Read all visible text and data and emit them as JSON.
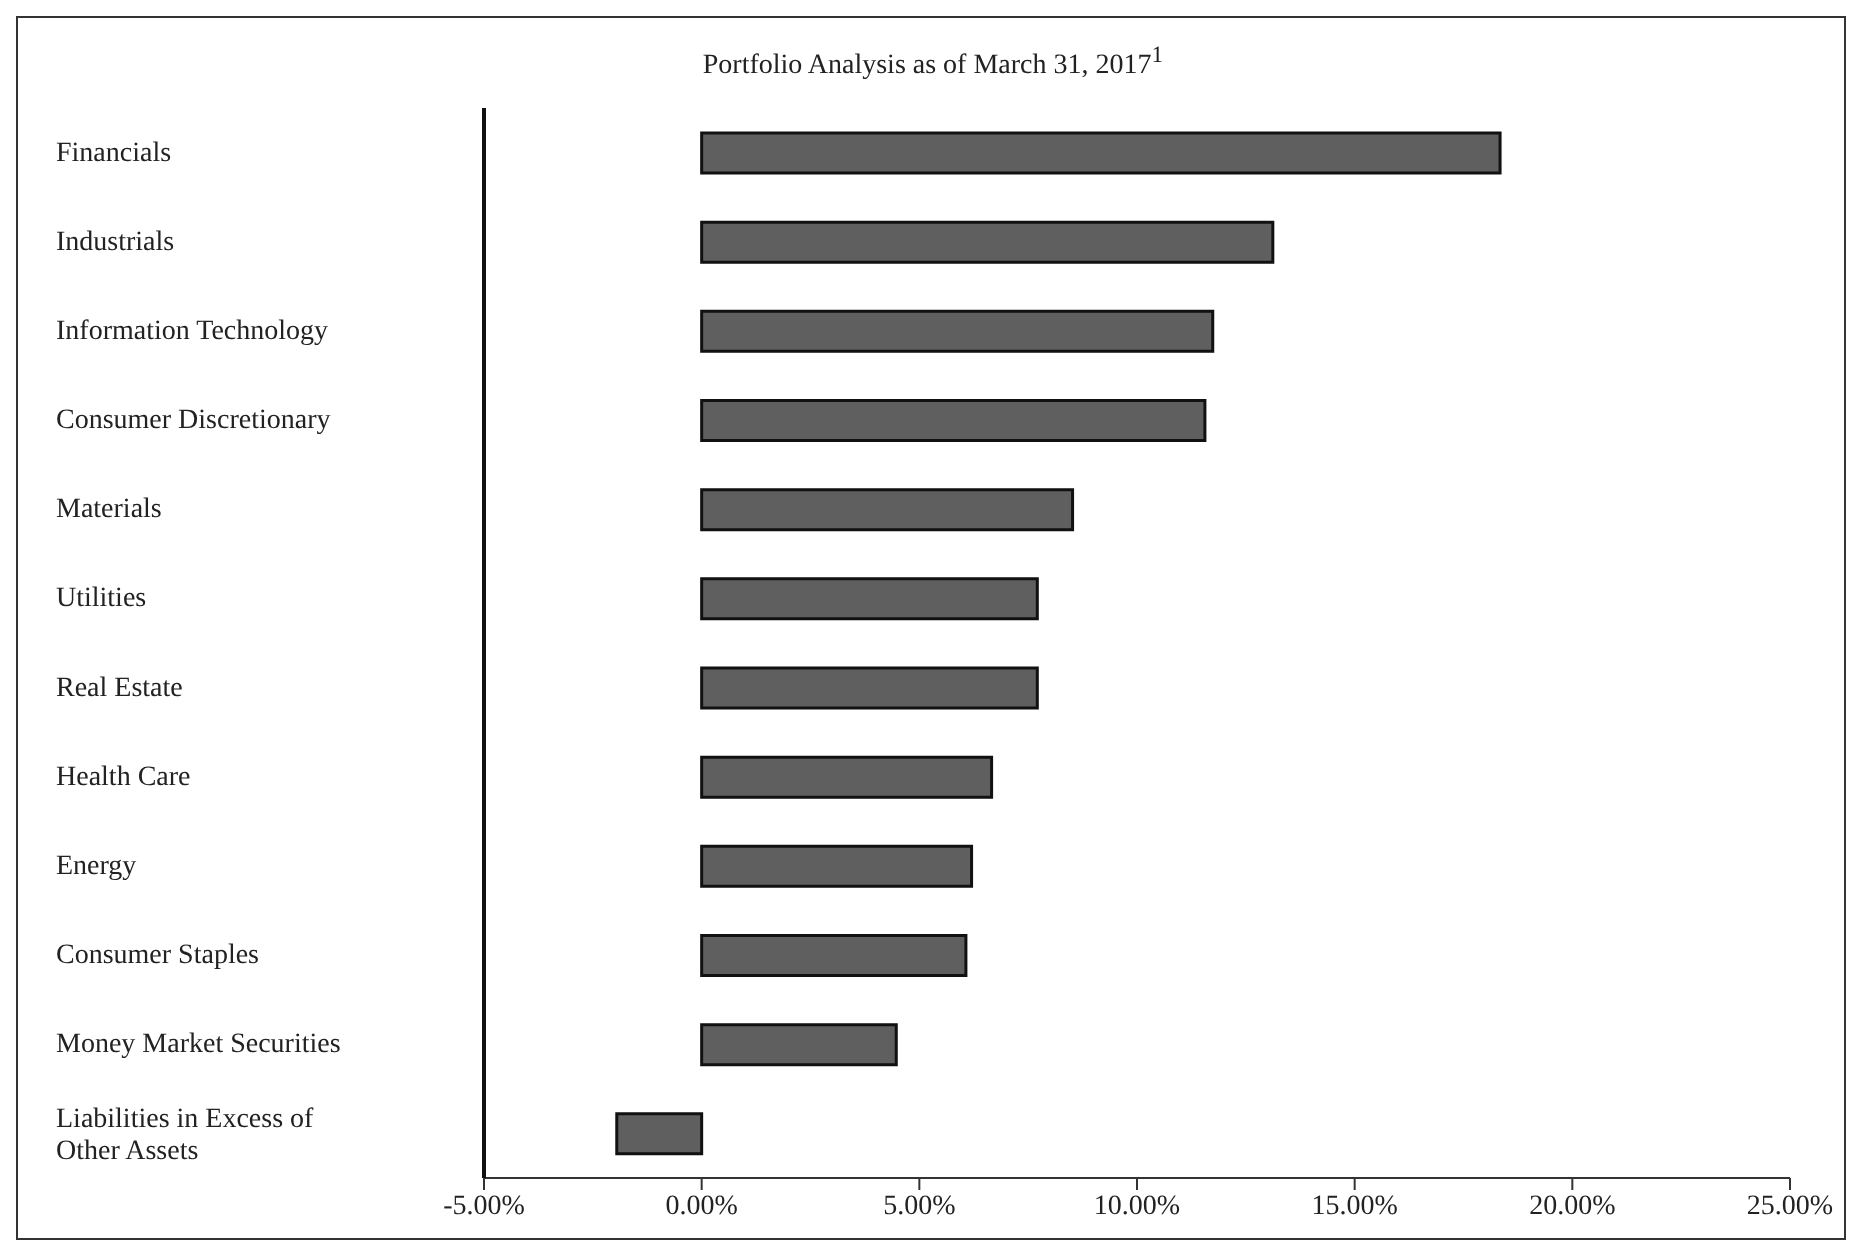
{
  "chart_data": {
    "type": "bar",
    "orientation": "horizontal",
    "title": "Portfolio Analysis as of March 31, 2017$^{1}$",
    "categories": [
      "Financials",
      "Industrials",
      "Information Technology",
      "Consumer Discretionary",
      "Materials",
      "Utilities",
      "Real Estate",
      "Health Care",
      "Energy",
      "Consumer Staples",
      "Money Market Securities",
      "Liabilities in Excess of Other Assets"
    ],
    "values": [
      18.34,
      13.12,
      11.74,
      11.56,
      8.52,
      7.71,
      7.71,
      6.66,
      6.2,
      6.07,
      4.47,
      -1.95
    ],
    "color": "#5f5f60",
    "xlim": [
      -5,
      25
    ],
    "xticks": [
      {
        "value": -5,
        "label": "-5.00%"
      },
      {
        "value": 0,
        "label": "0.00%"
      },
      {
        "value": 5,
        "label": "5.00%"
      },
      {
        "value": 10,
        "label": "10.00%"
      },
      {
        "value": 15,
        "label": "15.00%"
      },
      {
        "value": 20,
        "label": "20.00%"
      },
      {
        "value": 25,
        "label": "25.00%"
      }
    ],
    "grid": false,
    "legend": false
  }
}
